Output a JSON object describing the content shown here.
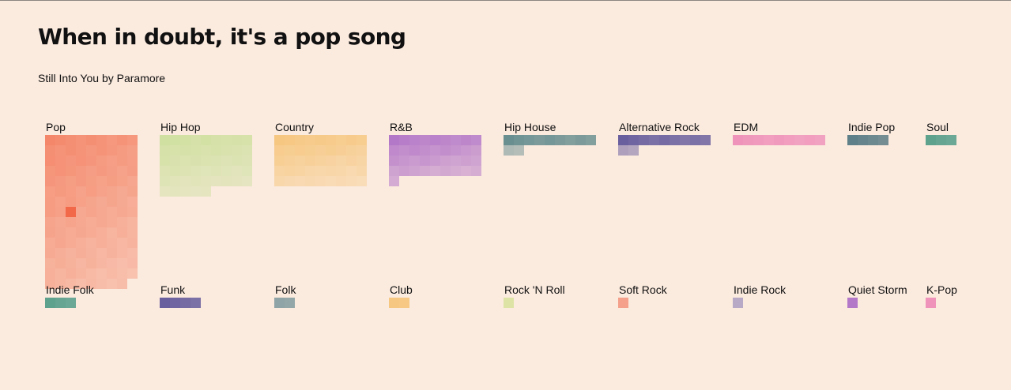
{
  "page": {
    "title": "When in doubt, it's a pop song",
    "subtitle": "Still Into You by Paramore"
  },
  "chart_data": {
    "type": "waffle",
    "title": "When in doubt, it's a pop song",
    "subtitle": "Still Into You by Paramore",
    "unit": "one square per song",
    "highlighted": {
      "genre": "Pop",
      "song": "Still Into You by Paramore"
    },
    "genres": [
      {
        "name": "Pop",
        "count": 134,
        "color": "#f4876a",
        "highlight_index": 65
      },
      {
        "name": "Hip Hop",
        "count": 50,
        "color": "#cfe0a0"
      },
      {
        "name": "Country",
        "count": 45,
        "color": "#f6c780"
      },
      {
        "name": "R&B",
        "count": 37,
        "color": "#b478c8"
      },
      {
        "name": "Hip House",
        "count": 11,
        "color": "#6a8f90"
      },
      {
        "name": "Alternative Rock",
        "count": 11,
        "color": "#6a5f9e"
      },
      {
        "name": "EDM",
        "count": 9,
        "color": "#ef93bb"
      },
      {
        "name": "Indie Pop",
        "count": 4,
        "color": "#5f8088"
      },
      {
        "name": "Soul",
        "count": 3,
        "color": "#5ea28e"
      },
      {
        "name": "Indie Folk",
        "count": 3,
        "color": "#5ea28e"
      },
      {
        "name": "Funk",
        "count": 4,
        "color": "#6a5f9e"
      },
      {
        "name": "Folk",
        "count": 2,
        "color": "#8fa4a6"
      },
      {
        "name": "Club",
        "count": 2,
        "color": "#f6c780"
      },
      {
        "name": "Rock 'N Roll",
        "count": 1,
        "color": "#dde3a4"
      },
      {
        "name": "Soft Rock",
        "count": 1,
        "color": "#f4a08a"
      },
      {
        "name": "Indie Rock",
        "count": 1,
        "color": "#b8aac6"
      },
      {
        "name": "Quiet Storm",
        "count": 1,
        "color": "#b478c8"
      },
      {
        "name": "K-Pop",
        "count": 1,
        "color": "#ef93bb"
      }
    ]
  }
}
